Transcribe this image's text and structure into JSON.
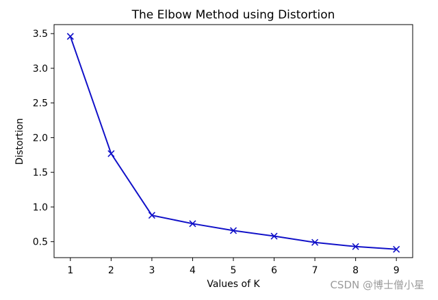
{
  "chart_data": {
    "type": "line",
    "title": "The Elbow Method using Distortion",
    "xlabel": "Values of K",
    "ylabel": "Distortion",
    "x": [
      1,
      2,
      3,
      4,
      5,
      6,
      7,
      8,
      9
    ],
    "series": [
      {
        "values": [
          3.46,
          1.77,
          0.88,
          0.76,
          0.66,
          0.58,
          0.49,
          0.43,
          0.39
        ],
        "color": "#1010c8",
        "marker": "x"
      }
    ],
    "xticks": [
      "1",
      "2",
      "3",
      "4",
      "5",
      "6",
      "7",
      "8",
      "9"
    ],
    "yticks": [
      "0.5",
      "1.0",
      "1.5",
      "2.0",
      "2.5",
      "3.0",
      "3.5"
    ],
    "xlim": [
      0.6,
      9.4
    ],
    "ylim": [
      0.27,
      3.63
    ],
    "grid": false
  },
  "watermark": "CSDN @博士僧小星"
}
